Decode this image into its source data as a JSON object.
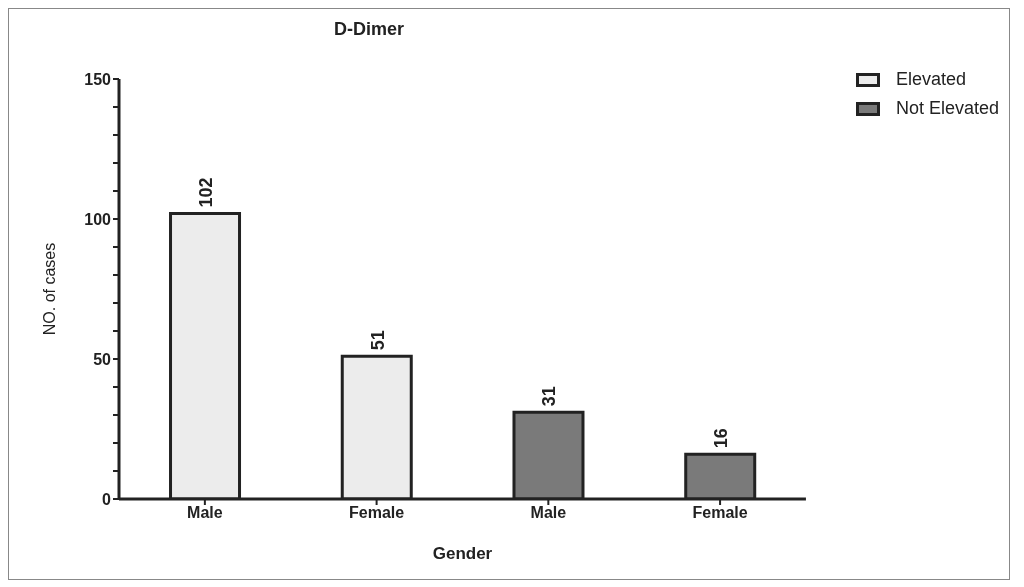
{
  "chart_data": {
    "type": "bar",
    "title": "D-Dimer",
    "xlabel": "Gender",
    "ylabel": "NO. of cases",
    "categories": [
      "Male",
      "Female",
      "Male",
      "Female"
    ],
    "series": [
      {
        "name": "Elevated",
        "color": "#ececec",
        "values": [
          102,
          51,
          null,
          null
        ]
      },
      {
        "name": "Not Elevated",
        "color": "#7a7a7a",
        "values": [
          null,
          null,
          31,
          16
        ]
      }
    ],
    "stacked": true,
    "ylim": [
      0,
      150
    ],
    "yticks": [
      0,
      {
        "value": 10,
        "label": null
      },
      {
        "value": 20,
        "label": null
      },
      {
        "value": 30,
        "label": null
      },
      {
        "value": 40,
        "label": null
      },
      50,
      {
        "value": 60,
        "label": null
      },
      {
        "value": 70,
        "label": null
      },
      {
        "value": 80,
        "label": null
      },
      {
        "value": 90,
        "label": null
      },
      100,
      {
        "value": 110,
        "label": null
      },
      {
        "value": 120,
        "label": null
      },
      {
        "value": 130,
        "label": null
      },
      {
        "value": 140,
        "label": null
      },
      150
    ],
    "data_labels": true,
    "legend": "top right",
    "grid": false
  }
}
